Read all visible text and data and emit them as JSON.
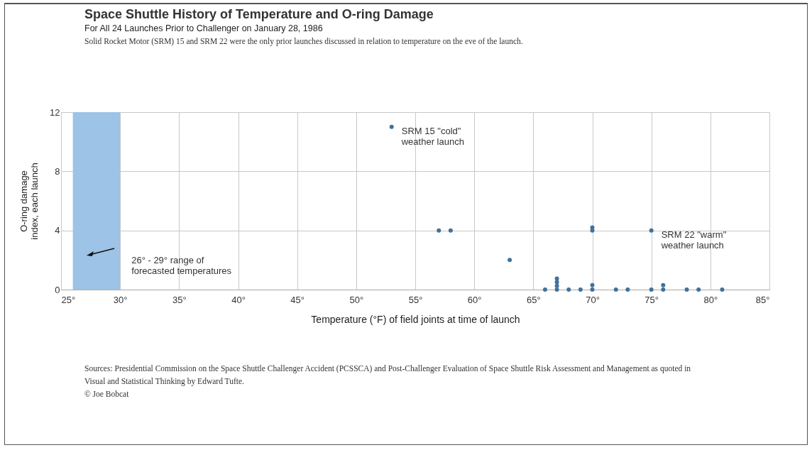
{
  "chart_data": {
    "type": "scatter",
    "title": "Space Shuttle History of Temperature and O-ring Damage",
    "subtitle": "For All 24 Launches Prior to Challenger on January 28, 1986",
    "xlabel": "Temperature (°F) of field joints at time of launch",
    "ylabel": "O-ring damage\nindex, each launch",
    "series": [
      {
        "color": "#41719c",
        "x": [
          53,
          57,
          58,
          63,
          66,
          67,
          67,
          67,
          67,
          68,
          69,
          70,
          70,
          70,
          70,
          72,
          73,
          75,
          75,
          76,
          76,
          78,
          79,
          81
        ],
        "values": [
          11,
          4,
          4,
          2,
          0,
          0,
          0.25,
          0.5,
          0.75,
          0,
          0,
          0,
          0.3,
          4,
          4.2,
          0,
          0,
          0,
          4,
          0,
          0.3,
          0,
          0,
          0
        ]
      }
    ],
    "marker": "circle",
    "xlim": [
      25,
      85
    ],
    "ylim": [
      0,
      12
    ],
    "xticks": [
      {
        "value": 25,
        "label": "25°"
      },
      {
        "value": 30,
        "label": "30°"
      },
      {
        "value": 35,
        "label": "35°"
      },
      {
        "value": 40,
        "label": "40°"
      },
      {
        "value": 45,
        "label": "45°"
      },
      {
        "value": 50,
        "label": "50°"
      },
      {
        "value": 55,
        "label": "55°"
      },
      {
        "value": 60,
        "label": "60°"
      },
      {
        "value": 65,
        "label": "65°"
      },
      {
        "value": 70,
        "label": "70°"
      },
      {
        "value": 75,
        "label": "75°"
      },
      {
        "value": 80,
        "label": "80°"
      },
      {
        "value": 85,
        "label": "85°"
      }
    ],
    "yticks": [
      0,
      4,
      8,
      12
    ],
    "grid": true,
    "bands": [
      {
        "axis": "x",
        "from": 26,
        "to": 30,
        "label": "26° - 29° range of\nforecasted temperatures",
        "color": "#9dc3e6"
      }
    ],
    "annotations": [
      "Solid Rocket Motor (SRM) 15 and SRM 22 were the only prior launches discussed in relation to temperature on the eve of the launch.",
      {
        "text": "SRM 15 \"cold\"\nweather launch",
        "x": 53,
        "y": 11
      },
      {
        "text": "SRM 22 \"warm\"\nweather launch",
        "x": 75,
        "y": 4
      },
      "Sources:  Presidential Commission on the Space Shuttle Challenger Accident (PCSSCA) and Post-Challenger Evaluation of Space Shuttle Risk Assessment and Management as quoted in Visual and Statistical Thinking by Edward Tufte.",
      "© Joe Bobcat"
    ]
  }
}
